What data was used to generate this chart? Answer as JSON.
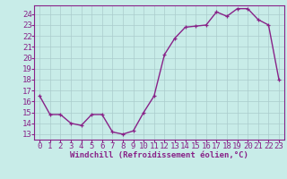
{
  "x": [
    0,
    1,
    2,
    3,
    4,
    5,
    6,
    7,
    8,
    9,
    10,
    11,
    12,
    13,
    14,
    15,
    16,
    17,
    18,
    19,
    20,
    21,
    22,
    23
  ],
  "y": [
    16.5,
    14.8,
    14.8,
    14.0,
    13.8,
    14.8,
    14.8,
    13.2,
    13.0,
    13.3,
    15.0,
    16.5,
    20.3,
    21.8,
    22.8,
    22.9,
    23.0,
    24.2,
    23.8,
    24.5,
    24.5,
    23.5,
    23.0,
    18.0
  ],
  "line_color": "#882288",
  "marker": "+",
  "marker_size": 3,
  "bg_color": "#c8ece8",
  "grid_color": "#aacccc",
  "xlabel": "Windchill (Refroidissement éolien,°C)",
  "xlim": [
    -0.5,
    23.5
  ],
  "ylim": [
    12.5,
    24.8
  ],
  "xticks": [
    0,
    1,
    2,
    3,
    4,
    5,
    6,
    7,
    8,
    9,
    10,
    11,
    12,
    13,
    14,
    15,
    16,
    17,
    18,
    19,
    20,
    21,
    22,
    23
  ],
  "yticks": [
    13,
    14,
    15,
    16,
    17,
    18,
    19,
    20,
    21,
    22,
    23,
    24
  ],
  "font_size": 6.5,
  "line_width": 1.0
}
